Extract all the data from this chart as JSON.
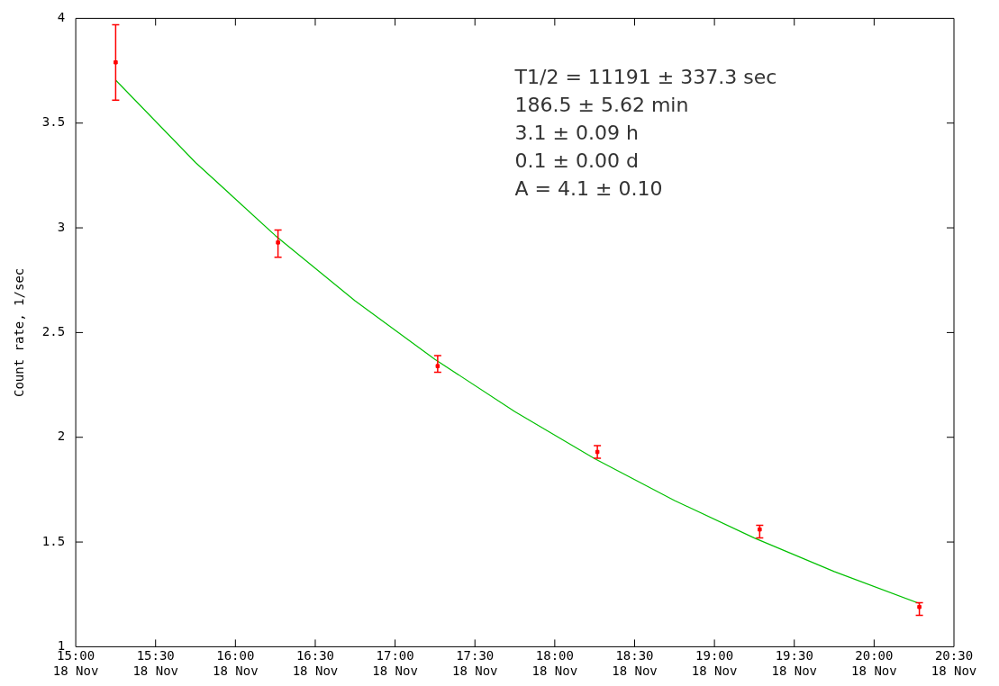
{
  "chart_data": {
    "type": "scatter",
    "ylabel": "Count rate, 1/sec",
    "annotations": [
      "T1/2 = 11191 ± 337.3 sec",
      "186.5 ± 5.62 min",
      "3.1 ± 0.09 h",
      "0.1 ± 0.00 d",
      "A = 4.1 ± 0.10"
    ],
    "series": [
      {
        "type": "scatter",
        "color": "#ff0000",
        "x": [
          "--11-18T15:15",
          "--11-18T16:16",
          "--11-18T17:16",
          "--11-18T18:16",
          "--11-18T19:17",
          "--11-18T20:17"
        ],
        "values": [
          3.79,
          2.93,
          2.34,
          1.93,
          1.56,
          1.19
        ],
        "errors": [
          [
            3.61,
            3.97
          ],
          [
            2.86,
            2.99
          ],
          [
            2.31,
            2.39
          ],
          [
            1.9,
            1.96
          ],
          [
            1.52,
            1.58
          ],
          [
            1.15,
            1.21
          ]
        ],
        "marker": "square"
      },
      {
        "type": "line",
        "color": "#00c000",
        "x": [
          "--11-18T15:15",
          "--11-18T15:45",
          "--11-18T16:15",
          "--11-18T16:45",
          "--11-18T17:15",
          "--11-18T17:45",
          "--11-18T18:15",
          "--11-18T18:45",
          "--11-18T19:15",
          "--11-18T19:45",
          "--11-18T20:17"
        ],
        "values": [
          3.705,
          3.312,
          2.963,
          2.651,
          2.372,
          2.122,
          1.898,
          1.698,
          1.519,
          1.359,
          1.207
        ],
        "marker": "none",
        "line_style": "solid"
      }
    ],
    "xlim": [
      "--11-18T15:00",
      "--11-18T20:30"
    ],
    "xticks": [
      {
        "value": "--11-18T15:00",
        "label": "15:00\n18 Nov"
      },
      {
        "value": "--11-18T15:30",
        "label": "15:30\n18 Nov"
      },
      {
        "value": "--11-18T16:00",
        "label": "16:00\n18 Nov"
      },
      {
        "value": "--11-18T16:30",
        "label": "16:30\n18 Nov"
      },
      {
        "value": "--11-18T17:00",
        "label": "17:00\n18 Nov"
      },
      {
        "value": "--11-18T17:30",
        "label": "17:30\n18 Nov"
      },
      {
        "value": "--11-18T18:00",
        "label": "18:00\n18 Nov"
      },
      {
        "value": "--11-18T18:30",
        "label": "18:30\n18 Nov"
      },
      {
        "value": "--11-18T19:00",
        "label": "19:00\n18 Nov"
      },
      {
        "value": "--11-18T19:30",
        "label": "19:30\n18 Nov"
      },
      {
        "value": "--11-18T20:00",
        "label": "20:00\n18 Nov"
      },
      {
        "value": "--11-18T20:30",
        "label": "20:30\n18 Nov"
      }
    ],
    "ylim": [
      1,
      4
    ],
    "yticks": [
      1,
      1.5,
      2,
      2.5,
      3,
      3.5,
      4
    ],
    "grid": false,
    "legend": false
  }
}
